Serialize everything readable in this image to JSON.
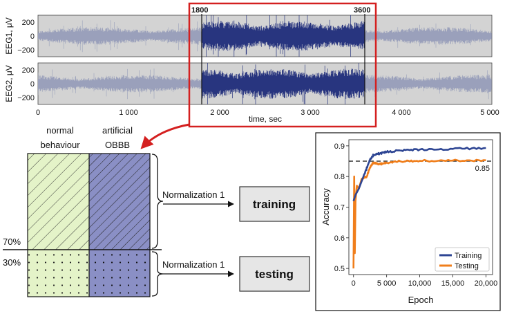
{
  "eeg": {
    "channels": [
      {
        "label": "EEG1, μV",
        "yticks": [
          "200",
          "0",
          "−200"
        ]
      },
      {
        "label": "EEG2, μV",
        "yticks": [
          "200",
          "0",
          "−200"
        ]
      }
    ],
    "xticks": [
      "0",
      "1 000",
      "2 000",
      "3 000",
      "4 000",
      "5 000"
    ],
    "xlabel": "time, sec",
    "window_start": "1800",
    "window_end": "3600",
    "x_range": [
      0,
      5000
    ],
    "y_range": [
      -300,
      300
    ],
    "colors": {
      "background_signal": "#9aa0bb",
      "window_signal": "#28357f",
      "highlight": "#d42020"
    }
  },
  "split": {
    "col_normal": [
      "normal",
      "behaviour"
    ],
    "col_artificial": [
      "artificial",
      "OBBB"
    ],
    "pct_train": "70%",
    "pct_test": "30%",
    "norm_train": "Normalization 1",
    "norm_test": "Normalization 1",
    "box_train": "training",
    "box_test": "testing",
    "colors": {
      "normal_fill": "#e4f3c8",
      "artificial_fill": "#8a8fc5"
    }
  },
  "chart_data": {
    "type": "line",
    "xlabel": "Epoch",
    "ylabel": "Accuracy",
    "xlim": [
      -700,
      21000
    ],
    "ylim": [
      0.48,
      0.92
    ],
    "xticks": [
      "0",
      "5 000",
      "10,000",
      "15,000",
      "20,000"
    ],
    "yticks": [
      "0.5",
      "0.6",
      "0.7",
      "0.8",
      "0.9"
    ],
    "reference_line": {
      "value": 0.85,
      "label": "0.85"
    },
    "legend_position": "bottom-right",
    "series": [
      {
        "name": "Training",
        "color": "#2d4593",
        "x": [
          0,
          300,
          800,
          1500,
          2500,
          3000,
          4000,
          5000,
          7000,
          10000,
          15000,
          20000
        ],
        "y": [
          0.72,
          0.74,
          0.76,
          0.8,
          0.855,
          0.87,
          0.875,
          0.88,
          0.885,
          0.888,
          0.89,
          0.893
        ]
      },
      {
        "name": "Testing",
        "color": "#f07e1b",
        "x": [
          0,
          100,
          200,
          300,
          500,
          800,
          1200,
          2000,
          2500,
          3000,
          4000,
          5000,
          7000,
          10000,
          15000,
          20000
        ],
        "y": [
          0.5,
          0.8,
          0.55,
          0.72,
          0.77,
          0.76,
          0.79,
          0.8,
          0.83,
          0.845,
          0.84,
          0.845,
          0.85,
          0.851,
          0.852,
          0.853
        ]
      }
    ]
  }
}
